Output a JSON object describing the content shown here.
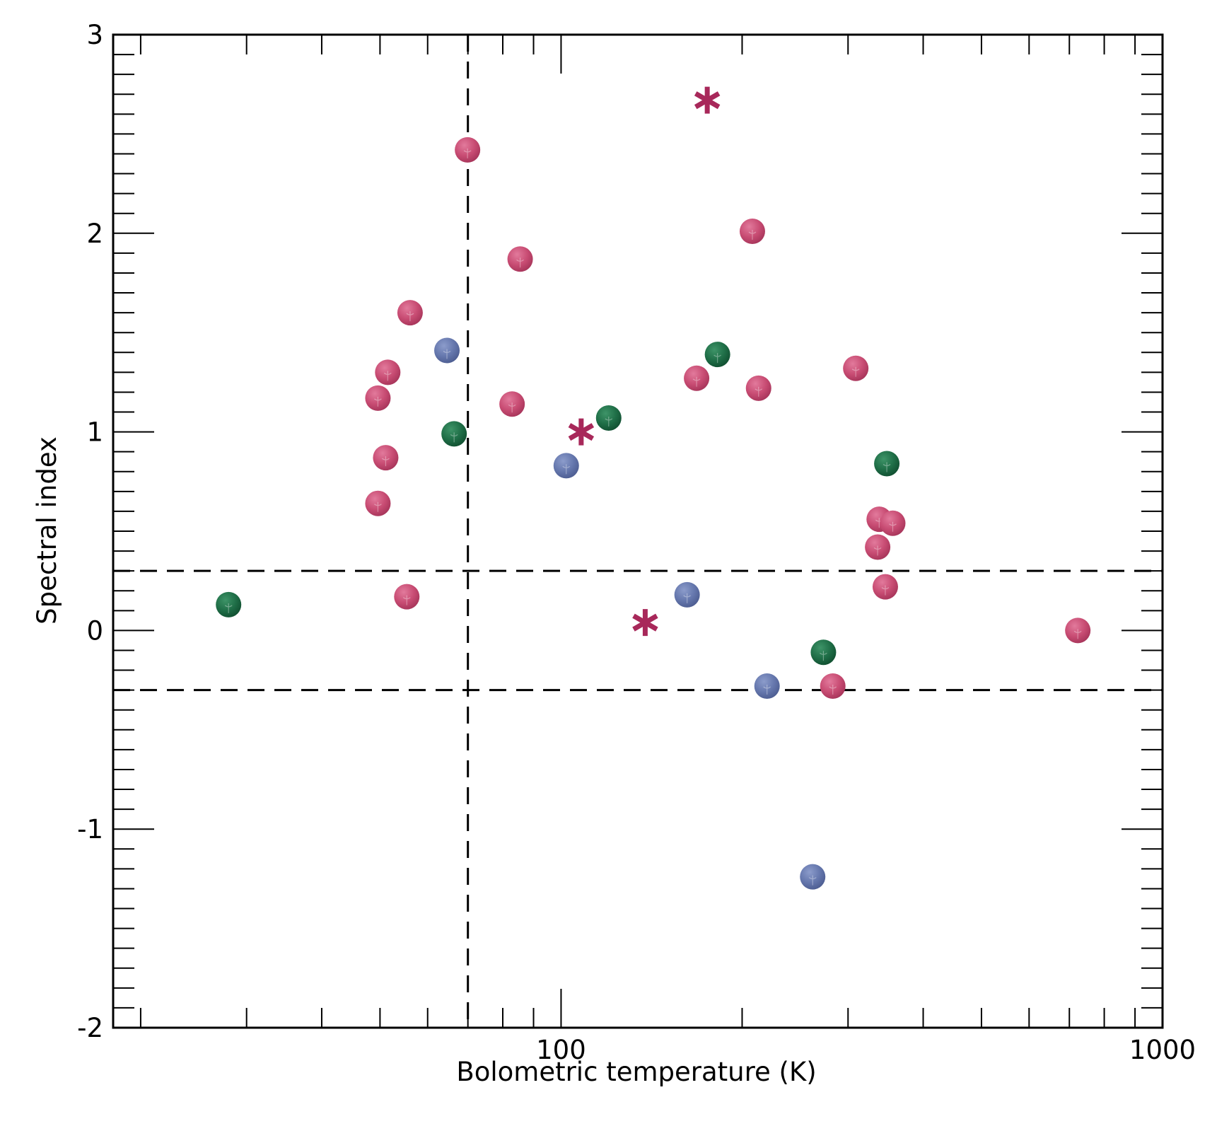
{
  "chart_data": {
    "type": "scatter",
    "title": "",
    "xlabel": "Bolometric temperature (K)",
    "ylabel": "Spectral index",
    "x_scale": "log",
    "xlim": [
      18,
      1000
    ],
    "ylim": [
      -2,
      3
    ],
    "x_ticks": [
      {
        "value": 100,
        "label": "100"
      },
      {
        "value": 1000,
        "label": "1000"
      }
    ],
    "y_ticks": [
      {
        "value": 3,
        "label": "3"
      },
      {
        "value": 2,
        "label": "2"
      },
      {
        "value": 1,
        "label": "1"
      },
      {
        "value": 0,
        "label": "0"
      },
      {
        "value": -1,
        "label": "-1"
      },
      {
        "value": -2,
        "label": "-2"
      }
    ],
    "grid": false,
    "reference_lines": {
      "vertical_x": [
        70
      ],
      "horizontal_y": [
        0.3,
        -0.3
      ]
    },
    "series": [
      {
        "marker": "circle",
        "color": "#c0406a",
        "points": [
          [
            69.9,
            2.42
          ],
          [
            85.5,
            1.87
          ],
          [
            56.1,
            1.6
          ],
          [
            51.5,
            1.3
          ],
          [
            49.6,
            1.17
          ],
          [
            51.1,
            0.87
          ],
          [
            49.6,
            0.64
          ],
          [
            55.4,
            0.17
          ],
          [
            82.9,
            1.14
          ],
          [
            168,
            1.27
          ],
          [
            208,
            2.01
          ],
          [
            213,
            1.22
          ],
          [
            309,
            1.32
          ],
          [
            338,
            0.56
          ],
          [
            356,
            0.54
          ],
          [
            336,
            0.42
          ],
          [
            346,
            0.22
          ],
          [
            283,
            -0.28
          ],
          [
            723,
            0.0
          ]
        ]
      },
      {
        "marker": "circle",
        "color": "#5a6fa6",
        "points": [
          [
            64.6,
            1.41
          ],
          [
            102,
            0.83
          ],
          [
            162,
            0.18
          ],
          [
            220,
            -0.28
          ],
          [
            262,
            -1.24
          ]
        ]
      },
      {
        "marker": "circle",
        "color": "#1c6a44",
        "points": [
          [
            28.0,
            0.13
          ],
          [
            66.4,
            0.99
          ],
          [
            120,
            1.07
          ],
          [
            182,
            1.39
          ],
          [
            348,
            0.84
          ],
          [
            273,
            -0.11
          ]
        ]
      },
      {
        "marker": "asterisk",
        "color": "#a8285a",
        "points": [
          [
            175,
            2.67
          ],
          [
            108,
            1.0
          ],
          [
            138,
            0.04
          ]
        ]
      }
    ]
  }
}
